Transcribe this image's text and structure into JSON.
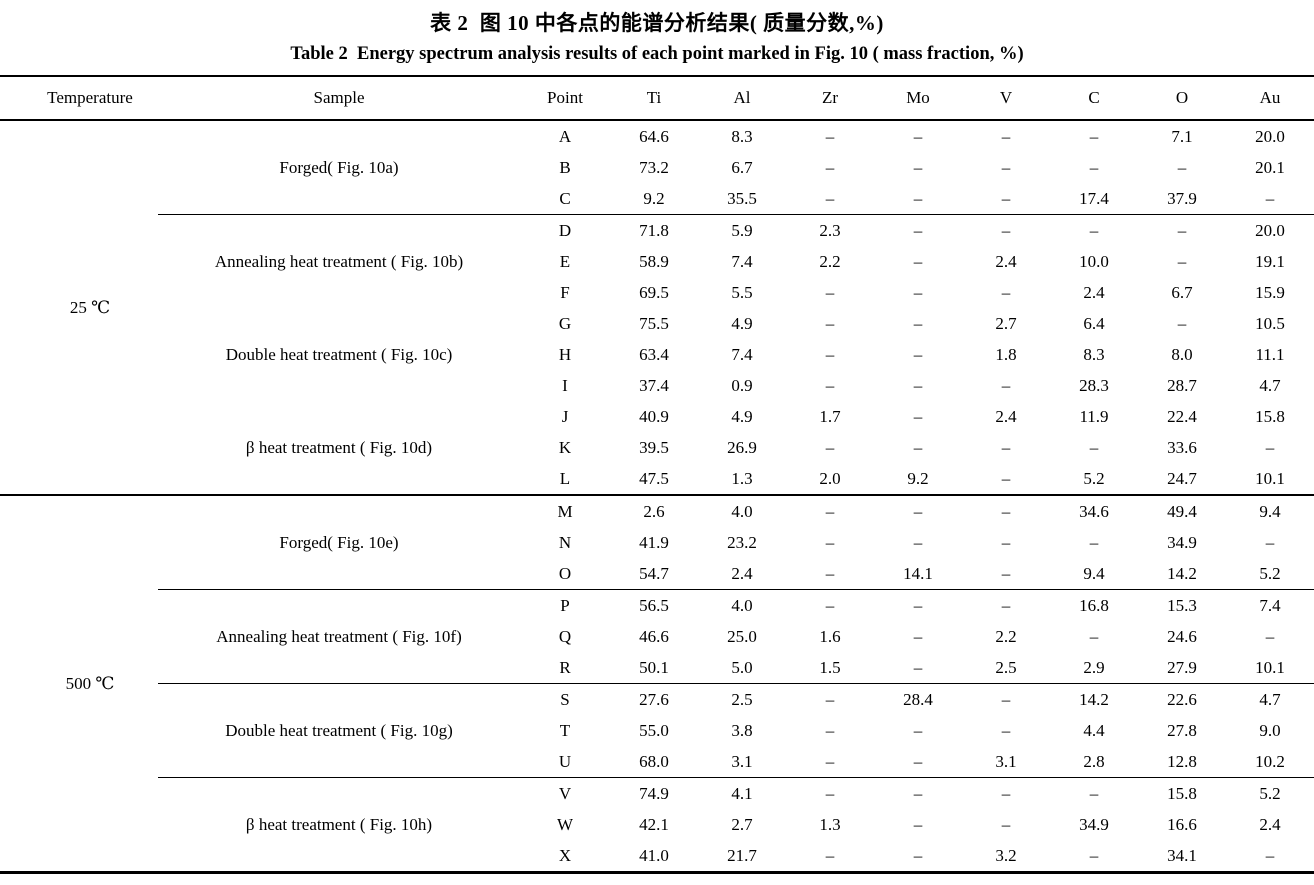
{
  "titles": {
    "zh": "表 2  图 10 中各点的能谱分析结果( 质量分数,%)",
    "en": "Table 2  Energy spectrum analysis results of each point marked in Fig. 10 ( mass fraction, %)"
  },
  "table": {
    "columns": [
      "Temperature",
      "Sample",
      "Point",
      "Ti",
      "Al",
      "Zr",
      "Mo",
      "V",
      "C",
      "O",
      "Au"
    ],
    "missing_symbol": "–",
    "sections": [
      {
        "temperature": "25 ℃",
        "groups": [
          {
            "sample": "Forged( Fig. 10a)",
            "rule_above": false,
            "rows": [
              {
                "point": "A",
                "values": [
                  "64.6",
                  "8.3",
                  "–",
                  "–",
                  "–",
                  "–",
                  "7.1",
                  "20.0"
                ]
              },
              {
                "point": "B",
                "values": [
                  "73.2",
                  "6.7",
                  "–",
                  "–",
                  "–",
                  "–",
                  "–",
                  "20.1"
                ]
              },
              {
                "point": "C",
                "values": [
                  "9.2",
                  "35.5",
                  "–",
                  "–",
                  "–",
                  "17.4",
                  "37.9",
                  "–"
                ]
              }
            ]
          },
          {
            "sample": "Annealing heat treatment ( Fig. 10b)",
            "rule_above": true,
            "rows": [
              {
                "point": "D",
                "values": [
                  "71.8",
                  "5.9",
                  "2.3",
                  "–",
                  "–",
                  "–",
                  "–",
                  "20.0"
                ]
              },
              {
                "point": "E",
                "values": [
                  "58.9",
                  "7.4",
                  "2.2",
                  "–",
                  "2.4",
                  "10.0",
                  "–",
                  "19.1"
                ]
              },
              {
                "point": "F",
                "values": [
                  "69.5",
                  "5.5",
                  "–",
                  "–",
                  "–",
                  "2.4",
                  "6.7",
                  "15.9"
                ]
              }
            ]
          },
          {
            "sample": "Double heat treatment ( Fig. 10c)",
            "rule_above": false,
            "rows": [
              {
                "point": "G",
                "values": [
                  "75.5",
                  "4.9",
                  "–",
                  "–",
                  "2.7",
                  "6.4",
                  "–",
                  "10.5"
                ]
              },
              {
                "point": "H",
                "values": [
                  "63.4",
                  "7.4",
                  "–",
                  "–",
                  "1.8",
                  "8.3",
                  "8.0",
                  "11.1"
                ]
              },
              {
                "point": "I",
                "values": [
                  "37.4",
                  "0.9",
                  "–",
                  "–",
                  "–",
                  "28.3",
                  "28.7",
                  "4.7"
                ]
              }
            ]
          },
          {
            "sample": "β heat treatment ( Fig. 10d)",
            "rule_above": false,
            "rows": [
              {
                "point": "J",
                "values": [
                  "40.9",
                  "4.9",
                  "1.7",
                  "–",
                  "2.4",
                  "11.9",
                  "22.4",
                  "15.8"
                ]
              },
              {
                "point": "K",
                "values": [
                  "39.5",
                  "26.9",
                  "–",
                  "–",
                  "–",
                  "–",
                  "33.6",
                  "–"
                ]
              },
              {
                "point": "L",
                "values": [
                  "47.5",
                  "1.3",
                  "2.0",
                  "9.2",
                  "–",
                  "5.2",
                  "24.7",
                  "10.1"
                ]
              }
            ]
          }
        ]
      },
      {
        "temperature": "500 ℃",
        "groups": [
          {
            "sample": "Forged( Fig. 10e)",
            "rule_above": false,
            "rows": [
              {
                "point": "M",
                "values": [
                  "2.6",
                  "4.0",
                  "–",
                  "–",
                  "–",
                  "34.6",
                  "49.4",
                  "9.4"
                ]
              },
              {
                "point": "N",
                "values": [
                  "41.9",
                  "23.2",
                  "–",
                  "–",
                  "–",
                  "–",
                  "34.9",
                  "–"
                ]
              },
              {
                "point": "O",
                "values": [
                  "54.7",
                  "2.4",
                  "–",
                  "14.1",
                  "–",
                  "9.4",
                  "14.2",
                  "5.2"
                ]
              }
            ]
          },
          {
            "sample": "Annealing heat treatment ( Fig. 10f)",
            "rule_above": true,
            "rows": [
              {
                "point": "P",
                "values": [
                  "56.5",
                  "4.0",
                  "–",
                  "–",
                  "–",
                  "16.8",
                  "15.3",
                  "7.4"
                ]
              },
              {
                "point": "Q",
                "values": [
                  "46.6",
                  "25.0",
                  "1.6",
                  "–",
                  "2.2",
                  "–",
                  "24.6",
                  "–"
                ]
              },
              {
                "point": "R",
                "values": [
                  "50.1",
                  "5.0",
                  "1.5",
                  "–",
                  "2.5",
                  "2.9",
                  "27.9",
                  "10.1"
                ]
              }
            ]
          },
          {
            "sample": "Double heat treatment ( Fig. 10g)",
            "rule_above": true,
            "rows": [
              {
                "point": "S",
                "values": [
                  "27.6",
                  "2.5",
                  "–",
                  "28.4",
                  "–",
                  "14.2",
                  "22.6",
                  "4.7"
                ]
              },
              {
                "point": "T",
                "values": [
                  "55.0",
                  "3.8",
                  "–",
                  "–",
                  "–",
                  "4.4",
                  "27.8",
                  "9.0"
                ]
              },
              {
                "point": "U",
                "values": [
                  "68.0",
                  "3.1",
                  "–",
                  "–",
                  "3.1",
                  "2.8",
                  "12.8",
                  "10.2"
                ]
              }
            ]
          },
          {
            "sample": "β heat treatment ( Fig. 10h)",
            "rule_above": true,
            "rows": [
              {
                "point": "V",
                "values": [
                  "74.9",
                  "4.1",
                  "–",
                  "–",
                  "–",
                  "–",
                  "15.8",
                  "5.2"
                ]
              },
              {
                "point": "W",
                "values": [
                  "42.1",
                  "2.7",
                  "1.3",
                  "–",
                  "–",
                  "34.9",
                  "16.6",
                  "2.4"
                ]
              },
              {
                "point": "X",
                "values": [
                  "41.0",
                  "21.7",
                  "–",
                  "–",
                  "3.2",
                  "–",
                  "34.1",
                  "–"
                ]
              }
            ]
          }
        ]
      }
    ]
  }
}
